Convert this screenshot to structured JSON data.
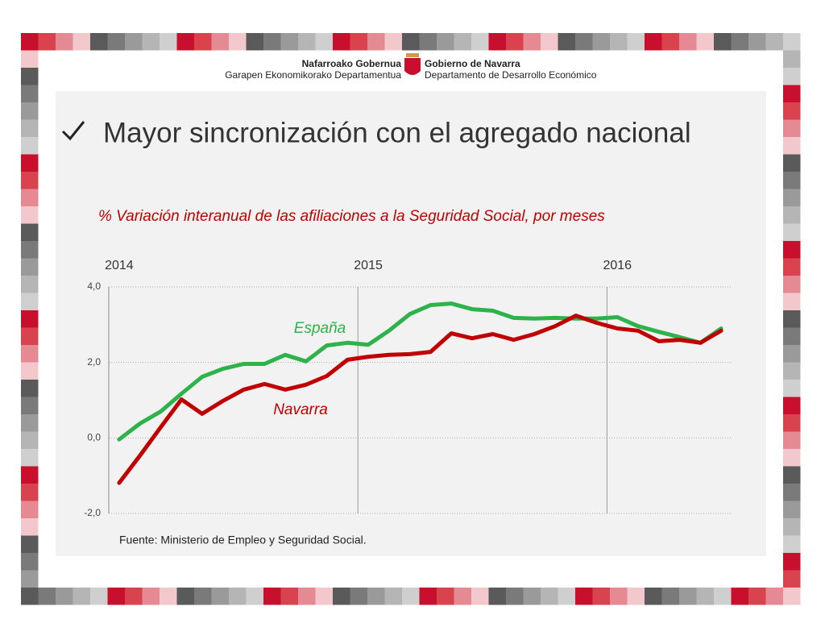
{
  "header": {
    "left_title": "Nafarroako Gobernua",
    "left_subtitle": "Garapen Ekonomikorako Departamentua",
    "right_title": "Gobierno de Navarra",
    "right_subtitle": "Departamento de Desarrollo Económico"
  },
  "title": "Mayor sincronización con el agregado nacional",
  "chart_data": {
    "type": "line",
    "subtitle": "% Variación interanual de las afiliaciones a la Seguridad Social, por meses",
    "categories": [
      "2014",
      null,
      null,
      null,
      null,
      null,
      null,
      null,
      null,
      null,
      null,
      null,
      "2015",
      null,
      null,
      null,
      null,
      null,
      null,
      null,
      null,
      null,
      null,
      null,
      "2016",
      null,
      null,
      null,
      null,
      null
    ],
    "series": [
      {
        "name": "España",
        "color": "#2db34a",
        "values": [
          -0.04,
          0.38,
          0.7,
          1.17,
          1.62,
          1.83,
          1.96,
          1.96,
          2.2,
          2.03,
          2.45,
          2.52,
          2.47,
          2.84,
          3.28,
          3.52,
          3.56,
          3.41,
          3.37,
          3.18,
          3.16,
          3.18,
          3.16,
          3.16,
          3.2,
          2.96,
          2.81,
          2.67,
          2.52,
          2.9
        ]
      },
      {
        "name": "Navarra",
        "color": "#c00000",
        "values": [
          -1.19,
          -0.47,
          0.28,
          1.02,
          0.64,
          0.98,
          1.28,
          1.43,
          1.28,
          1.41,
          1.64,
          2.07,
          2.15,
          2.2,
          2.22,
          2.28,
          2.77,
          2.64,
          2.75,
          2.6,
          2.75,
          2.96,
          3.24,
          3.05,
          2.9,
          2.84,
          2.56,
          2.6,
          2.52,
          2.84
        ]
      }
    ],
    "ylim": [
      -2,
      4
    ],
    "yticks": [
      {
        "value": -2,
        "label": "-2,0"
      },
      {
        "value": 0,
        "label": "0,0"
      },
      {
        "value": 2,
        "label": "2,0"
      },
      {
        "value": 4,
        "label": "4,0"
      }
    ],
    "grid": true,
    "source": "Fuente: Ministerio de Empleo y Seguridad Social."
  }
}
